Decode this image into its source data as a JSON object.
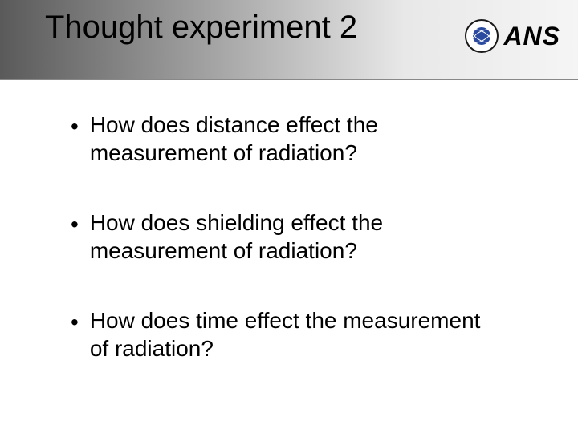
{
  "header": {
    "title": "Thought experiment 2",
    "logo_text": "ANS",
    "gradient_start": "#5a5a5a",
    "gradient_end": "#f5f5f5",
    "seal_inner_color": "#2a4aa0"
  },
  "content": {
    "bullets": [
      {
        "text": "How does distance effect the measurement of radiation?"
      },
      {
        "text": "How does shielding effect the measurement of radiation?"
      },
      {
        "text": "How does time effect the measurement of radiation?"
      }
    ],
    "bullet_glyph": "•",
    "font_size_title": 40,
    "font_size_bullet": 28,
    "text_color": "#000000",
    "background_color": "#ffffff"
  }
}
